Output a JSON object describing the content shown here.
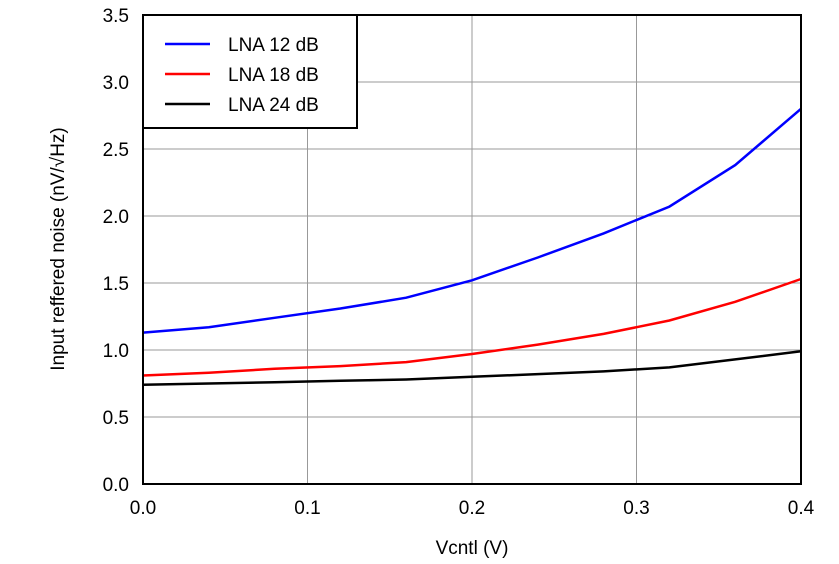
{
  "chart_data": {
    "type": "line",
    "title": "",
    "xlabel": "Vcntl (V)",
    "ylabel": "Input reffered noise (nV/√Hz)",
    "xlim": [
      0,
      0.4
    ],
    "ylim": [
      0,
      3.5
    ],
    "xticks": [
      "0.0",
      "0.1",
      "0.2",
      "0.3",
      "0.4"
    ],
    "yticks": [
      "0.0",
      "0.5",
      "1.0",
      "1.5",
      "2.0",
      "2.5",
      "3.0",
      "3.5"
    ],
    "grid": true,
    "legend_position": "top-left",
    "series": [
      {
        "name": "LNA 12 dB",
        "color": "#0000ff",
        "x": [
          0,
          0.04,
          0.08,
          0.12,
          0.16,
          0.2,
          0.24,
          0.28,
          0.32,
          0.36,
          0.4
        ],
        "y": [
          1.13,
          1.17,
          1.24,
          1.31,
          1.39,
          1.52,
          1.69,
          1.87,
          2.07,
          2.38,
          2.8
        ]
      },
      {
        "name": "LNA 18 dB",
        "color": "#ff0000",
        "x": [
          0,
          0.04,
          0.08,
          0.12,
          0.16,
          0.2,
          0.24,
          0.28,
          0.32,
          0.36,
          0.4
        ],
        "y": [
          0.81,
          0.83,
          0.86,
          0.88,
          0.91,
          0.97,
          1.04,
          1.12,
          1.22,
          1.36,
          1.53
        ]
      },
      {
        "name": "LNA 24 dB",
        "color": "#000000",
        "x": [
          0,
          0.04,
          0.08,
          0.12,
          0.16,
          0.2,
          0.24,
          0.28,
          0.32,
          0.36,
          0.4
        ],
        "y": [
          0.74,
          0.75,
          0.76,
          0.77,
          0.78,
          0.8,
          0.82,
          0.84,
          0.87,
          0.93,
          0.99
        ]
      }
    ]
  }
}
